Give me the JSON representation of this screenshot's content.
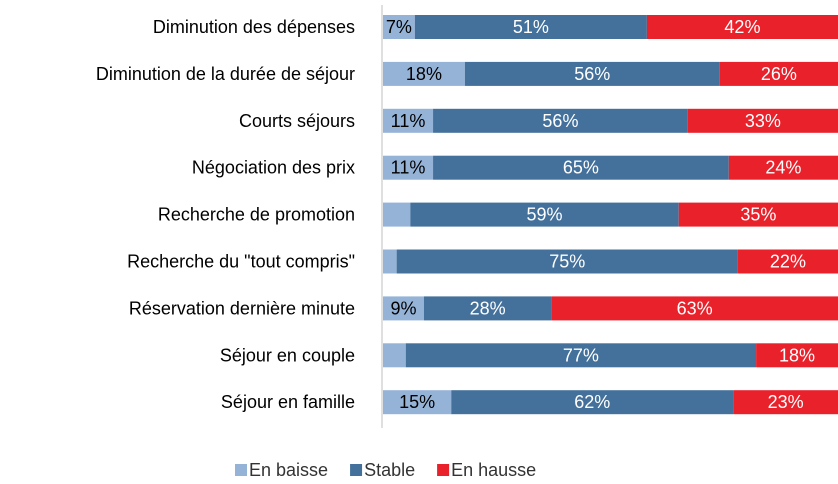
{
  "chart_data": {
    "type": "stacked-bar",
    "orientation": "horizontal",
    "categories": [
      "Diminution des dépenses",
      "Diminution de la durée de séjour",
      "Courts séjours",
      "Négociation des prix",
      "Recherche de promotion",
      "Recherche du \"tout compris\"",
      "Réservation dernière minute",
      "Séjour en couple",
      "Séjour en famille"
    ],
    "xlim": [
      0,
      100
    ],
    "legend": "bottom",
    "series": [
      {
        "name": "En baisse",
        "color": "#95b3d7",
        "label_color": "#000000",
        "values": [
          7,
          18,
          11,
          11,
          6,
          3,
          9,
          5,
          15
        ],
        "value_labels": [
          "7%",
          "18%",
          "11%",
          "11%",
          null,
          null,
          "9%",
          null,
          "15%"
        ]
      },
      {
        "name": "Stable",
        "color": "#44719b",
        "label_color": "#ffffff",
        "values": [
          51,
          56,
          56,
          65,
          59,
          75,
          28,
          77,
          62
        ],
        "value_labels": [
          "51%",
          "56%",
          "56%",
          "65%",
          "59%",
          "75%",
          "28%",
          "77%",
          "62%"
        ]
      },
      {
        "name": "En hausse",
        "color": "#e8212b",
        "label_color": "#ffffff",
        "values": [
          42,
          26,
          33,
          24,
          35,
          22,
          63,
          18,
          23
        ],
        "value_labels": [
          "42%",
          "26%",
          "33%",
          "24%",
          "35%",
          "22%",
          "63%",
          "18%",
          "23%"
        ]
      }
    ]
  }
}
